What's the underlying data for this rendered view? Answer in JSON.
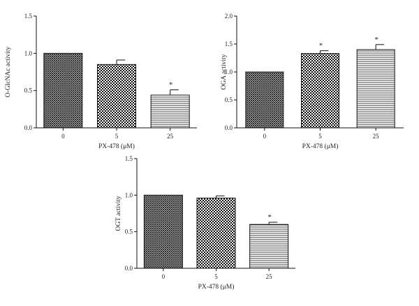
{
  "chart_data": [
    {
      "type": "bar",
      "ylabel": "O-GlcNAc activity",
      "xlabel": "PX-478 (μM)",
      "categories": [
        "0",
        "5",
        "25"
      ],
      "values": [
        1.0,
        0.85,
        0.44
      ],
      "errors": [
        0,
        0.06,
        0.07
      ],
      "significance": [
        "",
        "",
        "*"
      ],
      "patterns": [
        "crosshatch",
        "checker",
        "horizontal-lines"
      ],
      "ylim": [
        0,
        1.5
      ],
      "yticks": [
        "0.0",
        "0.5",
        "1.0",
        "1.5"
      ],
      "grid": false
    },
    {
      "type": "bar",
      "ylabel": "OGA activity",
      "xlabel": "PX-478 (μM)",
      "categories": [
        "0",
        "5",
        "25"
      ],
      "values": [
        1.0,
        1.33,
        1.4
      ],
      "errors": [
        0,
        0.05,
        0.09
      ],
      "significance": [
        "",
        "*",
        "*"
      ],
      "patterns": [
        "crosshatch",
        "checker",
        "horizontal-lines"
      ],
      "ylim": [
        0,
        2.0
      ],
      "yticks": [
        "0.0",
        "0.5",
        "1.0",
        "1.5",
        "2.0"
      ],
      "grid": false
    },
    {
      "type": "bar",
      "ylabel": "OGT activity",
      "xlabel": "PX-478 (μM)",
      "categories": [
        "0",
        "5",
        "25"
      ],
      "values": [
        1.0,
        0.96,
        0.6
      ],
      "errors": [
        0,
        0.03,
        0.03
      ],
      "significance": [
        "",
        "",
        "*"
      ],
      "patterns": [
        "crosshatch",
        "checker",
        "horizontal-lines"
      ],
      "ylim": [
        0,
        1.5
      ],
      "yticks": [
        "0.0",
        "0.5",
        "1.0",
        "1.5"
      ],
      "grid": false
    }
  ]
}
